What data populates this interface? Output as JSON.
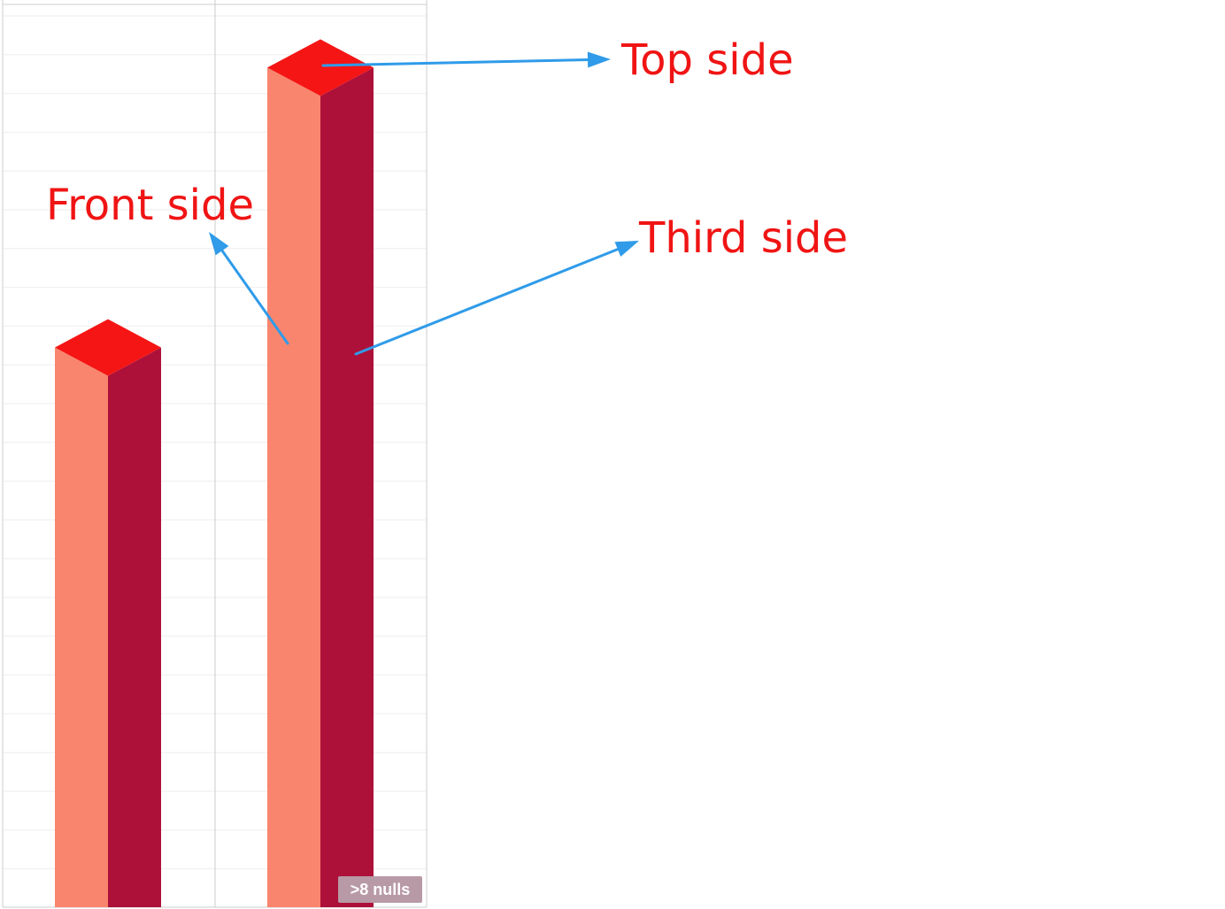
{
  "chart_data": {
    "type": "bar",
    "style": "3d-isometric",
    "categories": [
      "",
      ""
    ],
    "values": [
      62,
      93
    ],
    "ylim": [
      0,
      100
    ],
    "grid": true,
    "colors": {
      "front": "#f9856e",
      "third": "#ad1139",
      "top": "#f51515",
      "grid": "#eeeeee",
      "divider": "#cccccc"
    }
  },
  "annotations": {
    "top_side": "Top side",
    "front_side": "Front side",
    "third_side": "Third side",
    "color": "#f01414",
    "arrow_color": "#2f9be9"
  },
  "badge": {
    "label": ">8 nulls"
  }
}
